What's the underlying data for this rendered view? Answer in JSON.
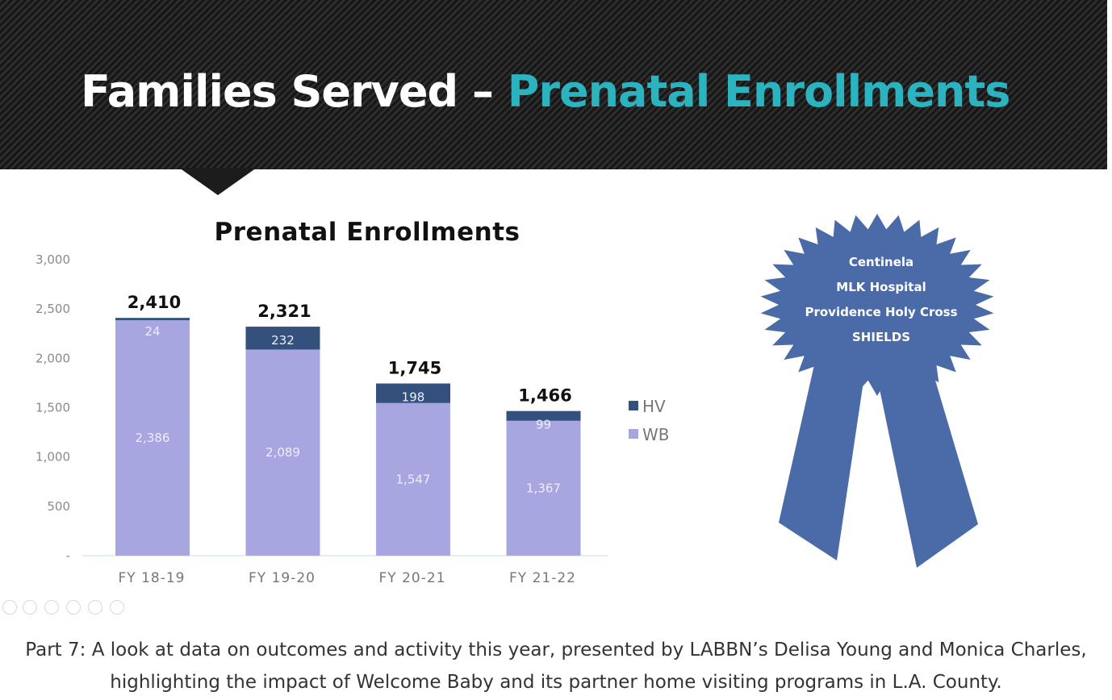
{
  "slide": {
    "title_main": "Families Served",
    "title_dash": " – ",
    "title_accent": "Prenatal Enrollments"
  },
  "colors": {
    "wb": "#a8a6e0",
    "hv": "#34507d",
    "ribbon": "#4a6aa8",
    "accent": "#2bb3bf"
  },
  "chart_data": {
    "type": "bar",
    "stacked": true,
    "title": "Prenatal Enrollments",
    "categories": [
      "FY 18-19",
      "FY 19-20",
      "FY 20-21",
      "FY 21-22"
    ],
    "series": [
      {
        "name": "WB",
        "values": [
          2386,
          2089,
          1547,
          1367
        ]
      },
      {
        "name": "HV",
        "values": [
          24,
          232,
          198,
          99
        ]
      }
    ],
    "totals": [
      2410,
      2321,
      1745,
      1466
    ],
    "value_labels": {
      "WB": [
        "2,386",
        "2,089",
        "1,547",
        "1,367"
      ],
      "HV": [
        "24",
        "232",
        "198",
        "99"
      ],
      "totals": [
        "2,410",
        "2,321",
        "1,745",
        "1,466"
      ]
    },
    "y_ticks": [
      0,
      500,
      1000,
      1500,
      2000,
      2500,
      3000
    ],
    "y_tick_labels": [
      "-",
      "500",
      "1,000",
      "1,500",
      "2,000",
      "2,500",
      "3,000"
    ],
    "ylim": [
      0,
      3000
    ],
    "grid": false,
    "legend_position": "right",
    "legend_order": [
      "HV",
      "WB"
    ]
  },
  "ribbon": {
    "lines": [
      "Centinela",
      "MLK Hospital",
      "Providence Holy Cross",
      "SHIELDS"
    ]
  },
  "toolbar": {
    "icons": [
      "previous-icon",
      "play-icon",
      "pen-icon",
      "copy-icon",
      "zoom-icon",
      "more-icon"
    ]
  },
  "caption": {
    "line1": "Part 7: A look at data on outcomes and activity this year, presented by LABBN’s Delisa Young and Monica Charles,",
    "line2": "highlighting the impact of Welcome Baby and its partner home visiting programs in L.A. County."
  }
}
